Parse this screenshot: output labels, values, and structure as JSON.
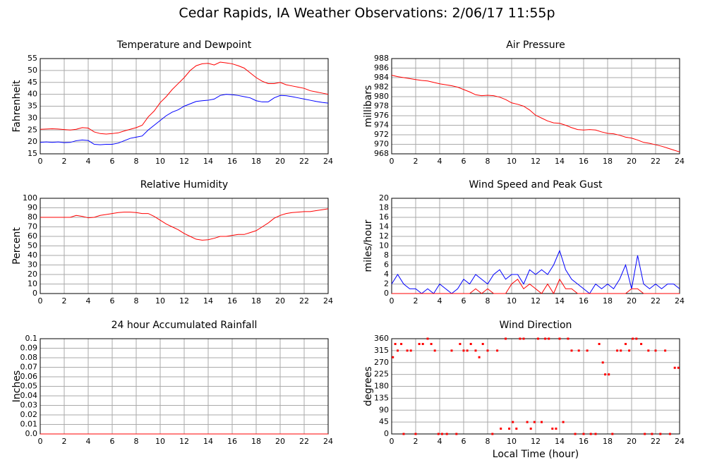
{
  "title": "Cedar Rapids, IA Weather Observations: 2/06/17 11:55p",
  "chart_data": [
    {
      "type": "line",
      "title": "Temperature and Dewpoint",
      "ylabel": "Fahrenheit",
      "x": [
        0,
        0.5,
        1,
        1.5,
        2,
        2.5,
        3,
        3.5,
        4,
        4.5,
        5,
        5.5,
        6,
        6.5,
        7,
        7.5,
        8,
        8.5,
        9,
        9.5,
        10,
        10.5,
        11,
        11.5,
        12,
        12.5,
        13,
        13.5,
        14,
        14.5,
        15,
        15.5,
        16,
        16.5,
        17,
        17.5,
        18,
        18.5,
        19,
        19.5,
        20,
        20.5,
        21,
        21.5,
        22,
        22.5,
        23,
        23.5,
        24
      ],
      "xlim": [
        0,
        24
      ],
      "xticks": [
        0,
        2,
        4,
        6,
        8,
        10,
        12,
        14,
        16,
        18,
        20,
        22,
        24
      ],
      "ylim": [
        15,
        55
      ],
      "yticks": [
        15,
        20,
        25,
        30,
        35,
        40,
        45,
        50,
        55
      ],
      "grid": true,
      "series": [
        {
          "color": "#ff0000",
          "values": [
            25.3,
            25.4,
            25.5,
            25.4,
            25.2,
            25.0,
            25.3,
            26,
            25.8,
            24.2,
            23.5,
            23.3,
            23.5,
            23.8,
            24.6,
            25.3,
            26,
            27,
            30.5,
            33,
            36.5,
            39,
            42,
            44.5,
            47,
            50,
            52,
            52.8,
            53,
            52.3,
            53.5,
            53.2,
            52.8,
            52,
            51,
            49,
            47,
            45.5,
            44.5,
            44.5,
            45,
            44,
            43.5,
            43,
            42.5,
            41.5,
            41,
            40.5,
            40
          ]
        },
        {
          "color": "#0000ff",
          "values": [
            19.8,
            20,
            19.8,
            20,
            19.7,
            19.8,
            20.5,
            20.8,
            20.6,
            19,
            18.8,
            19,
            19,
            19.5,
            20.5,
            21.5,
            22,
            22.5,
            25,
            27,
            29,
            31,
            32.5,
            33.5,
            35,
            36,
            37,
            37.3,
            37.5,
            38,
            39.5,
            40,
            39.8,
            39.5,
            39,
            38.5,
            37.3,
            36.8,
            36.8,
            38.5,
            39.5,
            39.4,
            39,
            38.5,
            38,
            37.5,
            37,
            36.6,
            36.3
          ]
        }
      ]
    },
    {
      "type": "line",
      "title": "Air Pressure",
      "ylabel": "millibars",
      "x": [
        0,
        0.5,
        1,
        1.5,
        2,
        2.5,
        3,
        3.5,
        4,
        4.5,
        5,
        5.5,
        6,
        6.5,
        7,
        7.5,
        8,
        8.5,
        9,
        9.5,
        10,
        10.5,
        11,
        11.5,
        12,
        12.5,
        13,
        13.5,
        14,
        14.5,
        15,
        15.5,
        16,
        16.5,
        17,
        17.5,
        18,
        18.5,
        19,
        19.5,
        20,
        20.5,
        21,
        21.5,
        22,
        22.5,
        23,
        23.5,
        24
      ],
      "xlim": [
        0,
        24
      ],
      "xticks": [
        0,
        2,
        4,
        6,
        8,
        10,
        12,
        14,
        16,
        18,
        20,
        22,
        24
      ],
      "ylim": [
        968,
        988
      ],
      "yticks": [
        968,
        970,
        972,
        974,
        976,
        978,
        980,
        982,
        984,
        986,
        988
      ],
      "grid": true,
      "series": [
        {
          "color": "#ff0000",
          "values": [
            984.5,
            984.2,
            984,
            983.8,
            983.6,
            983.4,
            983.3,
            983,
            982.7,
            982.5,
            982.3,
            982,
            981.5,
            981,
            980.4,
            980.2,
            980.3,
            980.2,
            979.9,
            979.4,
            978.7,
            978.4,
            978,
            977.2,
            976.1,
            975.5,
            974.9,
            974.5,
            974.4,
            974,
            973.5,
            973.1,
            973,
            973.1,
            973,
            972.6,
            972.3,
            972.2,
            971.9,
            971.5,
            971.3,
            970.9,
            970.4,
            970.2,
            969.9,
            969.6,
            969.2,
            968.8,
            968.4
          ]
        }
      ]
    },
    {
      "type": "line",
      "title": "Relative Humidity",
      "ylabel": "Percent",
      "x": [
        0,
        0.5,
        1,
        1.5,
        2,
        2.5,
        3,
        3.5,
        4,
        4.5,
        5,
        5.5,
        6,
        6.5,
        7,
        7.5,
        8,
        8.5,
        9,
        9.5,
        10,
        10.5,
        11,
        11.5,
        12,
        12.5,
        13,
        13.5,
        14,
        14.5,
        15,
        15.5,
        16,
        16.5,
        17,
        17.5,
        18,
        18.5,
        19,
        19.5,
        20,
        20.5,
        21,
        21.5,
        22,
        22.5,
        23,
        23.5,
        24
      ],
      "xlim": [
        0,
        24
      ],
      "xticks": [
        0,
        2,
        4,
        6,
        8,
        10,
        12,
        14,
        16,
        18,
        20,
        22,
        24
      ],
      "ylim": [
        0,
        100
      ],
      "yticks": [
        0,
        10,
        20,
        30,
        40,
        50,
        60,
        70,
        80,
        90,
        100
      ],
      "grid": true,
      "series": [
        {
          "color": "#ff0000",
          "values": [
            80,
            80,
            80,
            80,
            80,
            80,
            82,
            81,
            79.5,
            80,
            82,
            83,
            84,
            85,
            85.5,
            85.5,
            85,
            84,
            84,
            81,
            77,
            73,
            70,
            67,
            63,
            60,
            57,
            56,
            56.5,
            58,
            60,
            60,
            61,
            62,
            62,
            64,
            66,
            70,
            74,
            79,
            82,
            84,
            85,
            85.5,
            86,
            86,
            87,
            88,
            89
          ]
        }
      ]
    },
    {
      "type": "line",
      "title": "Wind Speed and Peak Gust",
      "ylabel": "miles/hour",
      "x": [
        0,
        0.5,
        1,
        1.5,
        2,
        2.5,
        3,
        3.5,
        4,
        4.5,
        5,
        5.5,
        6,
        6.5,
        7,
        7.5,
        8,
        8.5,
        9,
        9.5,
        10,
        10.5,
        11,
        11.5,
        12,
        12.5,
        13,
        13.5,
        14,
        14.5,
        15,
        15.5,
        16,
        16.5,
        17,
        17.5,
        18,
        18.5,
        19,
        19.5,
        20,
        20.5,
        21,
        21.5,
        22,
        22.5,
        23,
        23.5,
        24
      ],
      "xlim": [
        0,
        24
      ],
      "xticks": [
        0,
        2,
        4,
        6,
        8,
        10,
        12,
        14,
        16,
        18,
        20,
        22,
        24
      ],
      "ylim": [
        0,
        20
      ],
      "yticks": [
        0,
        2,
        4,
        6,
        8,
        10,
        12,
        14,
        16,
        18,
        20
      ],
      "grid": true,
      "series": [
        {
          "color": "#0000ff",
          "values": [
            2,
            4,
            2,
            1,
            1,
            0,
            1,
            0,
            2,
            1,
            0,
            1,
            3,
            2,
            4,
            3,
            2,
            4,
            5,
            3,
            4,
            4,
            2,
            5,
            4,
            5,
            4,
            6,
            9,
            5,
            3,
            2,
            1,
            0,
            2,
            1,
            2,
            1,
            3,
            6,
            1,
            8,
            2,
            1,
            2,
            1,
            2,
            2,
            1
          ]
        },
        {
          "color": "#ff0000",
          "values": [
            0,
            0,
            0,
            0,
            0,
            0,
            0,
            0,
            0,
            0,
            0,
            0,
            0,
            0,
            1,
            0,
            1,
            0,
            0,
            0,
            2,
            3,
            1,
            2,
            1,
            0,
            2,
            0,
            3,
            1,
            1,
            0,
            0,
            0,
            0,
            0,
            0,
            0,
            0,
            0,
            1,
            1,
            0,
            0,
            0,
            0,
            0,
            0,
            0
          ]
        }
      ]
    },
    {
      "type": "line",
      "title": "24 hour Accumulated Rainfall",
      "ylabel": "Inches",
      "x": [
        0,
        1,
        2,
        3,
        4,
        5,
        6,
        7,
        8,
        9,
        10,
        11,
        12,
        13,
        14,
        15,
        16,
        17,
        18,
        19,
        20,
        21,
        22,
        23,
        24
      ],
      "xlim": [
        0,
        24
      ],
      "xticks": [
        0,
        2,
        4,
        6,
        8,
        10,
        12,
        14,
        16,
        18,
        20,
        22,
        24
      ],
      "ylim": [
        0,
        0.1
      ],
      "yticks": [
        {
          "value": 0,
          "label": "0.0"
        },
        0.01,
        0.02,
        0.03,
        0.04,
        0.05,
        0.06,
        0.07,
        0.08,
        0.09,
        0.1
      ],
      "grid": true,
      "series": [
        {
          "color": "#ff0000",
          "values": [
            0,
            0,
            0,
            0,
            0,
            0,
            0,
            0,
            0,
            0,
            0,
            0,
            0,
            0,
            0,
            0,
            0,
            0,
            0,
            0,
            0,
            0,
            0,
            0,
            0
          ]
        }
      ]
    },
    {
      "type": "scatter",
      "title": "Wind Direction",
      "ylabel": "degrees",
      "xlabel": "Local Time (hour)",
      "x": [
        0.1,
        0.3,
        0.5,
        0.8,
        1.0,
        1.3,
        1.6,
        2.0,
        2.3,
        2.6,
        3.0,
        3.3,
        3.6,
        3.9,
        4.2,
        4.6,
        5.0,
        5.4,
        5.7,
        6.0,
        6.3,
        6.6,
        7.0,
        7.3,
        7.6,
        8.0,
        8.4,
        8.8,
        9.1,
        9.5,
        9.8,
        10.1,
        10.4,
        10.7,
        11.0,
        11.3,
        11.6,
        11.9,
        12.2,
        12.5,
        12.8,
        13.1,
        13.4,
        13.7,
        14.0,
        14.3,
        14.7,
        15.0,
        15.3,
        15.6,
        16.0,
        16.3,
        16.6,
        17.0,
        17.3,
        17.6,
        17.8,
        18.1,
        18.4,
        18.8,
        19.1,
        19.5,
        19.8,
        20.1,
        20.4,
        20.8,
        21.1,
        21.4,
        21.7,
        22.0,
        22.4,
        22.8,
        23.2,
        23.6,
        23.9
      ],
      "xlim": [
        0,
        24
      ],
      "xticks": [
        0,
        2,
        4,
        6,
        8,
        10,
        12,
        14,
        16,
        18,
        20,
        22,
        24
      ],
      "ylim": [
        0,
        360
      ],
      "yticks": [
        0,
        45,
        90,
        135,
        180,
        225,
        270,
        315,
        360
      ],
      "grid": true,
      "series": [
        {
          "color": "#ff0000",
          "values": [
            290,
            340,
            315,
            340,
            0,
            315,
            315,
            0,
            340,
            340,
            360,
            340,
            315,
            0,
            0,
            0,
            315,
            0,
            340,
            315,
            315,
            340,
            315,
            290,
            340,
            315,
            0,
            315,
            20,
            360,
            20,
            45,
            20,
            360,
            360,
            45,
            20,
            45,
            360,
            45,
            360,
            360,
            20,
            20,
            360,
            45,
            360,
            315,
            0,
            315,
            0,
            315,
            0,
            0,
            340,
            270,
            225,
            225,
            0,
            315,
            315,
            340,
            315,
            360,
            360,
            340,
            0,
            315,
            0,
            315,
            0,
            315,
            0,
            250,
            250
          ]
        }
      ]
    }
  ]
}
